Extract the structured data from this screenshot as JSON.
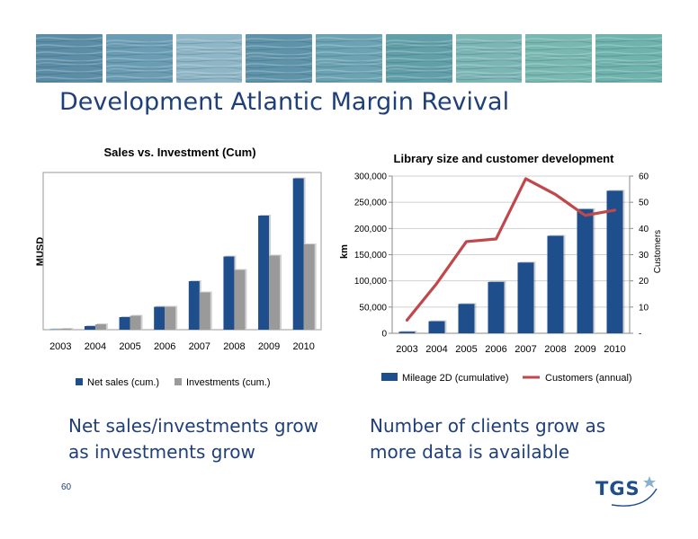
{
  "slide": {
    "title": "Development Atlantic Margin Revival",
    "page_number": "60",
    "logo_text": "TGS",
    "captions": {
      "left": "Net sales/investments grow\nas investments grow",
      "right": "Number of clients grow as\nmore data is available"
    },
    "colors": {
      "title": "#1f3f7a",
      "bar_primary": "#1f4e8c",
      "bar_secondary": "#9a9a9a",
      "line": "#c0474b",
      "banner": [
        "#5b8ea6",
        "#6a9db4",
        "#8fb6c6",
        "#5e93a9",
        "#6ba3b3",
        "#62a0a9",
        "#7bb6b5",
        "#78b8b0",
        "#6fb3ad"
      ]
    }
  },
  "chart_data": [
    {
      "type": "bar",
      "title": "Sales vs. Investment (Cum)",
      "ylabel": "MUSD",
      "categories": [
        "2003",
        "2004",
        "2005",
        "2006",
        "2007",
        "2008",
        "2009",
        "2010"
      ],
      "series": [
        {
          "name": "Net sales (cum.)",
          "values": [
            1,
            8,
            28,
            51,
            108,
            163,
            254,
            337
          ]
        },
        {
          "name": "Investments (cum.)",
          "values": [
            2,
            12,
            31,
            51,
            83,
            133,
            165,
            190
          ]
        }
      ],
      "ylim": [
        0,
        350
      ],
      "yticks_visible": false,
      "legend": "bottom"
    },
    {
      "type": "bar",
      "title": "Library size and customer development",
      "ylabel": "km",
      "y2label": "Customers",
      "categories": [
        "2003",
        "2004",
        "2005",
        "2006",
        "2007",
        "2008",
        "2009",
        "2010"
      ],
      "yticks": [
        "0",
        "50,000",
        "100,000",
        "150,000",
        "200,000",
        "250,000",
        "300,000"
      ],
      "y2ticks": [
        "-",
        "10",
        "20",
        "30",
        "40",
        "50",
        "60"
      ],
      "ylim": [
        0,
        300000
      ],
      "y2lim": [
        0,
        60
      ],
      "series": [
        {
          "name": "Mileage 2D (cumulative)",
          "type": "bar",
          "axis": "left",
          "values": [
            3000,
            23000,
            56000,
            98000,
            135000,
            186000,
            237000,
            272000
          ]
        },
        {
          "name": "Customers (annual)",
          "type": "line",
          "axis": "right",
          "values": [
            5,
            19,
            35,
            36,
            59,
            53,
            45,
            47
          ]
        }
      ],
      "legend": "bottom"
    }
  ]
}
